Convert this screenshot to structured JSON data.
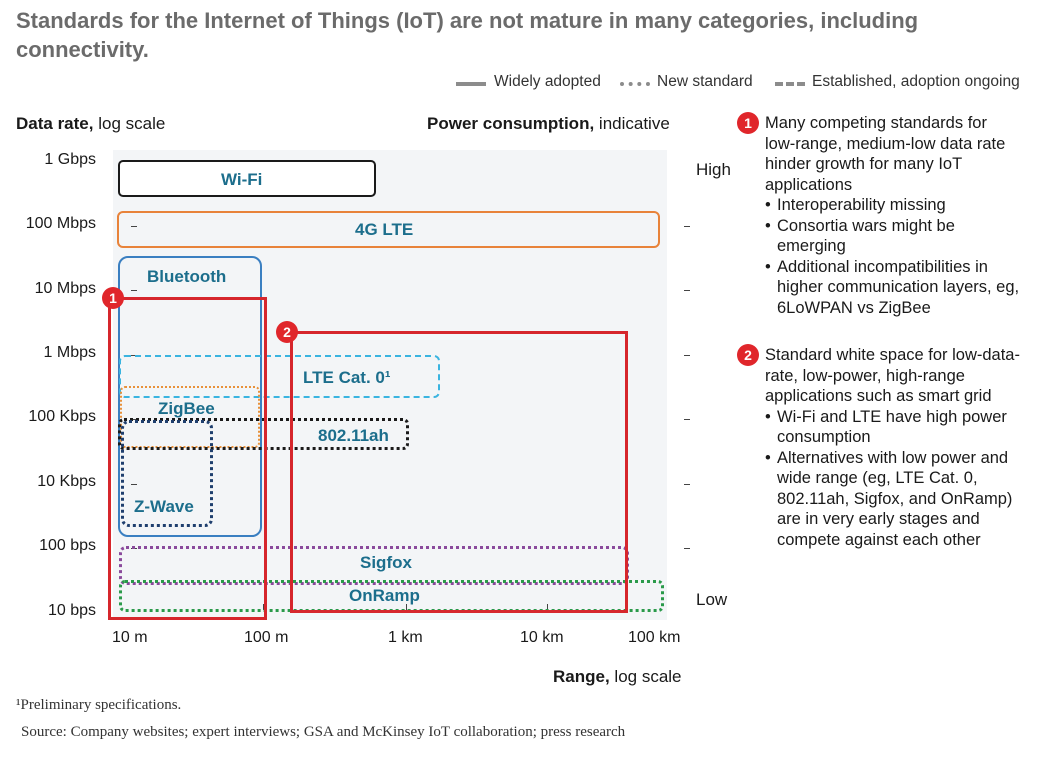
{
  "title": "Standards for the Internet of Things (IoT) are not mature in many categories, including connectivity.",
  "legend": [
    {
      "label": "Widely adopted",
      "style": "solid"
    },
    {
      "label": "New standard",
      "style": "dotted"
    },
    {
      "label": "Established, adoption ongoing",
      "style": "dashed"
    }
  ],
  "y_axis": {
    "title_bold": "Data rate,",
    "title_rest": " log scale",
    "ticks": [
      "1 Gbps",
      "100 Mbps",
      "10 Mbps",
      "1 Mbps",
      "100 Kbps",
      "10 Kbps",
      "100 bps",
      "10 bps"
    ]
  },
  "power_axis": {
    "title_bold": "Power consumption,",
    "title_rest": " indicative",
    "high": "High",
    "low": "Low"
  },
  "x_axis": {
    "title_bold": "Range,",
    "title_rest": " log scale",
    "ticks": [
      "10 m",
      "100 m",
      "1 km",
      "10 km",
      "100 km"
    ]
  },
  "standards": [
    {
      "name": "Wi-Fi",
      "style": "solid",
      "color": "#1a1a1a"
    },
    {
      "name": "4G LTE",
      "style": "solid",
      "color": "#e8833a"
    },
    {
      "name": "Bluetooth",
      "style": "solid",
      "color": "#3a7fc1"
    },
    {
      "name": "LTE Cat. 0¹",
      "style": "dashed",
      "color": "#3ab4e0"
    },
    {
      "name": "ZigBee",
      "style": "dotted",
      "color": "#e8913a"
    },
    {
      "name": "802.11ah",
      "style": "dotted",
      "color": "#1a1a1a"
    },
    {
      "name": "Z-Wave",
      "style": "dotted",
      "color": "#1f3f6e"
    },
    {
      "name": "Sigfox",
      "style": "dotted",
      "color": "#8a4a9c"
    },
    {
      "name": "OnRamp",
      "style": "dotted",
      "color": "#2a9a4a"
    }
  ],
  "highlights": [
    {
      "badge": "1"
    },
    {
      "badge": "2"
    }
  ],
  "notes": [
    {
      "badge": "1",
      "text": "Many competing standards for low-range, medium-low data rate hinder growth for many IoT applications",
      "bullets": [
        "Interoperability missing",
        "Consortia wars might be emerging",
        "Additional incompatibilities in higher communication layers, eg, 6LoWPAN vs ZigBee"
      ]
    },
    {
      "badge": "2",
      "text": "Standard white space for low-data-rate, low-power, high-range applications such as smart grid",
      "bullets": [
        "Wi-Fi and LTE have high power consumption",
        "Alternatives with low power and wide range (eg, LTE Cat. 0, 802.11ah, Sigfox, and OnRamp) are in very early stages and compete against each other"
      ]
    }
  ],
  "footnote": "¹Preliminary specifications.",
  "source": "Source: Company websites; expert interviews; GSA and McKinsey IoT collaboration; press research",
  "colors": {
    "highlight": "#d6262c",
    "label": "#1c6e8c",
    "title": "#6b6b6b"
  }
}
